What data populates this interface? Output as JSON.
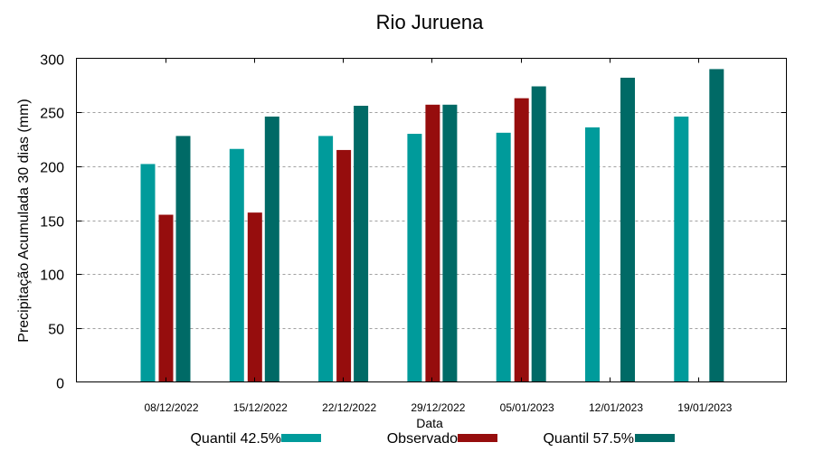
{
  "chart_data": {
    "type": "bar",
    "title": "Rio Juruena",
    "xlabel": "Data",
    "ylabel": "Precipitação Acumulada 30 dias (mm)",
    "ylim": [
      0,
      300
    ],
    "yticks": [
      0,
      50,
      100,
      150,
      200,
      250,
      300
    ],
    "grid": {
      "y": true,
      "x": false,
      "style": "dotted"
    },
    "legend_position": "bottom",
    "categories": [
      "08/12/2022",
      "15/12/2022",
      "22/12/2022",
      "29/12/2022",
      "05/01/2023",
      "12/01/2023",
      "19/01/2023"
    ],
    "series": [
      {
        "name": "Quantil 42.5%",
        "color": "#009b9b",
        "values": [
          202,
          216,
          228,
          230,
          231,
          236,
          246
        ]
      },
      {
        "name": "Observado",
        "color": "#960d0d",
        "values": [
          155,
          157,
          215,
          257,
          263,
          null,
          null
        ]
      },
      {
        "name": "Quantil 57.5%",
        "color": "#006a66",
        "values": [
          228,
          246,
          256,
          257,
          274,
          282,
          290
        ]
      }
    ]
  }
}
